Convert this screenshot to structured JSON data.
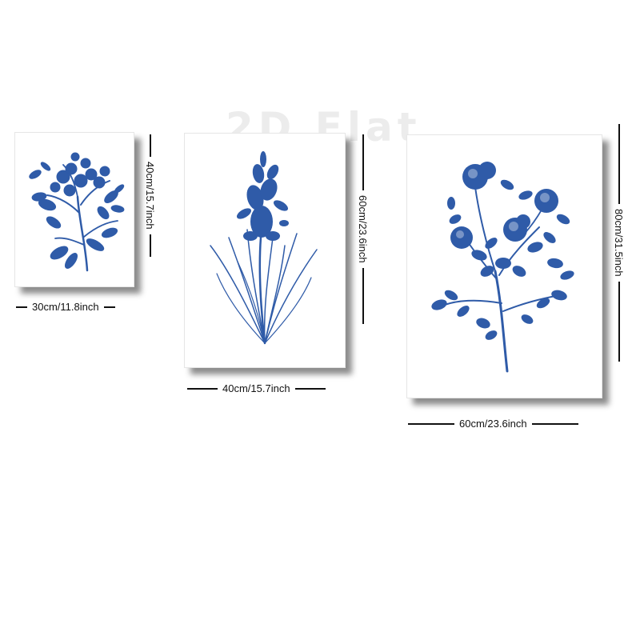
{
  "watermark": "2D Flat",
  "colors": {
    "print_ink": "#2F5BA8",
    "frame_shadow": "#555555",
    "dimension_line": "#111111"
  },
  "prints": [
    {
      "name": "small-print",
      "subject": "leafy flowering branch",
      "width_label": "30cm/11.8inch",
      "height_label": "40cm/15.7inch"
    },
    {
      "name": "medium-print",
      "subject": "flowering iris-like stem with grass leaves",
      "width_label": "40cm/15.7inch",
      "height_label": "60cm/23.6inch"
    },
    {
      "name": "large-print",
      "subject": "rose branch with blossoms",
      "width_label": "60cm/23.6inch",
      "height_label": "80cm/31.5inch"
    }
  ]
}
